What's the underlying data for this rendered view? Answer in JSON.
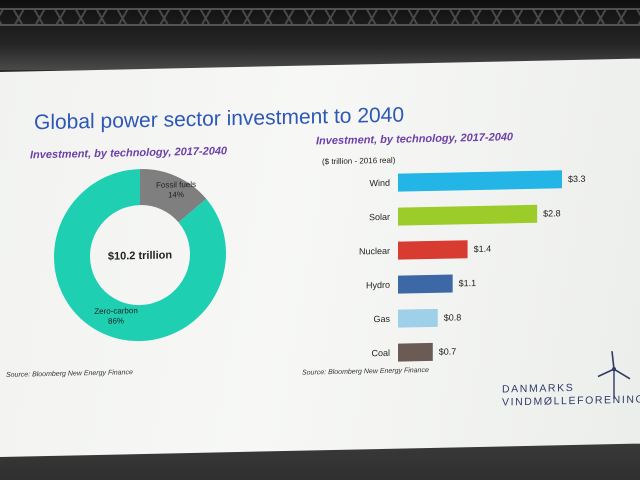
{
  "slide": {
    "title": "Global power sector investment to 2040",
    "left_subtitle": "Investment, by technology, 2017-2040",
    "right_subtitle": "Investment, by technology, 2017-2040",
    "right_units": "($ trillion - 2016 real)",
    "source_left": "Source: Bloomberg New Energy Finance",
    "source_right": "Source: Bloomberg New Energy Finance"
  },
  "logo": {
    "line1": "DANMARKS",
    "line2": "VINDMØLLEFORENING"
  },
  "chart_data": [
    {
      "type": "pie",
      "title": "Investment, by technology, 2017-2040",
      "center_label": "$10.2 trillion",
      "slices": [
        {
          "name": "Fossil fuels",
          "label": "14%",
          "value": 14,
          "color": "#7f7f7f"
        },
        {
          "name": "Zero-carbon",
          "label": "86%",
          "value": 86,
          "color": "#1fcfb2"
        }
      ]
    },
    {
      "type": "bar",
      "orientation": "horizontal",
      "title": "Investment, by technology, 2017-2040",
      "ylabel": "($ trillion - 2016 real)",
      "categories": [
        "Wind",
        "Solar",
        "Nuclear",
        "Hydro",
        "Gas",
        "Coal"
      ],
      "values": [
        3.3,
        2.8,
        1.4,
        1.1,
        0.8,
        0.7
      ],
      "value_labels": [
        "$3.3",
        "$2.8",
        "$1.4",
        "$1.1",
        "$0.8",
        "$0.7"
      ],
      "colors": [
        "#22b5e6",
        "#9bcc2a",
        "#d83b2f",
        "#3c68a6",
        "#9ed0ea",
        "#6b5b54"
      ],
      "xlim": [
        0,
        3.3
      ],
      "grid": false
    }
  ]
}
